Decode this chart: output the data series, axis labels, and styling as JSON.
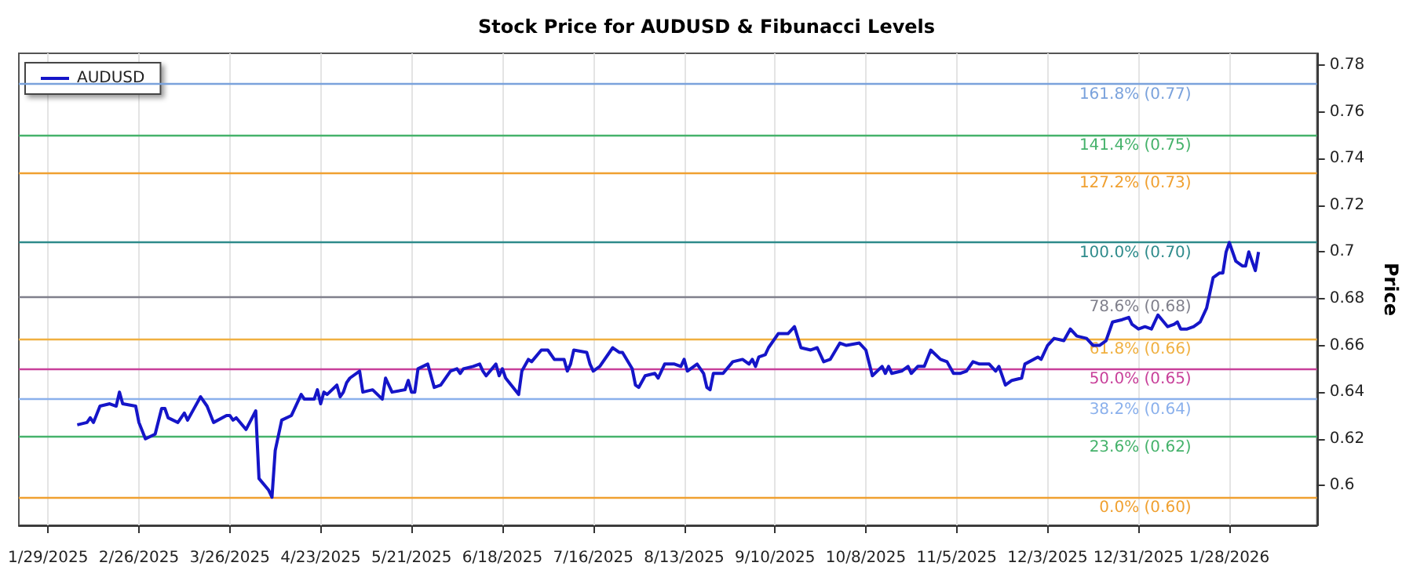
{
  "chart_data": {
    "type": "line",
    "title": "Stock Price for AUDUSD & Fibunacci Levels",
    "ylabel": "Price",
    "x": [
      "2025-02-07",
      "2025-02-10",
      "2025-02-11",
      "2025-02-12",
      "2025-02-14",
      "2025-02-17",
      "2025-02-19",
      "2025-02-20",
      "2025-02-21",
      "2025-02-25",
      "2025-02-26",
      "2025-02-28",
      "2025-03-03",
      "2025-03-05",
      "2025-03-06",
      "2025-03-07",
      "2025-03-10",
      "2025-03-12",
      "2025-03-13",
      "2025-03-17",
      "2025-03-19",
      "2025-03-21",
      "2025-03-25",
      "2025-03-26",
      "2025-03-27",
      "2025-03-28",
      "2025-03-31",
      "2025-04-03",
      "2025-04-04",
      "2025-04-07",
      "2025-04-08",
      "2025-04-09",
      "2025-04-11",
      "2025-04-14",
      "2025-04-17",
      "2025-04-18",
      "2025-04-21",
      "2025-04-22",
      "2025-04-23",
      "2025-04-24",
      "2025-04-25",
      "2025-04-28",
      "2025-04-29",
      "2025-04-30",
      "2025-05-01",
      "2025-05-02",
      "2025-05-05",
      "2025-05-06",
      "2025-05-09",
      "2025-05-12",
      "2025-05-13",
      "2025-05-15",
      "2025-05-19",
      "2025-05-20",
      "2025-05-21",
      "2025-05-22",
      "2025-05-23",
      "2025-05-26",
      "2025-05-28",
      "2025-05-30",
      "2025-06-02",
      "2025-06-04",
      "2025-06-05",
      "2025-06-06",
      "2025-06-09",
      "2025-06-11",
      "2025-06-12",
      "2025-06-13",
      "2025-06-16",
      "2025-06-17",
      "2025-06-18",
      "2025-06-19",
      "2025-06-23",
      "2025-06-24",
      "2025-06-26",
      "2025-06-27",
      "2025-06-30",
      "2025-07-02",
      "2025-07-04",
      "2025-07-07",
      "2025-07-08",
      "2025-07-09",
      "2025-07-10",
      "2025-07-14",
      "2025-07-15",
      "2025-07-16",
      "2025-07-18",
      "2025-07-22",
      "2025-07-24",
      "2025-07-25",
      "2025-07-28",
      "2025-07-29",
      "2025-07-30",
      "2025-08-01",
      "2025-08-04",
      "2025-08-05",
      "2025-08-07",
      "2025-08-10",
      "2025-08-12",
      "2025-08-13",
      "2025-08-14",
      "2025-08-17",
      "2025-08-19",
      "2025-08-20",
      "2025-08-21",
      "2025-08-22",
      "2025-08-25",
      "2025-08-28",
      "2025-08-31",
      "2025-09-02",
      "2025-09-03",
      "2025-09-04",
      "2025-09-05",
      "2025-09-07",
      "2025-09-08",
      "2025-09-11",
      "2025-09-13",
      "2025-09-14",
      "2025-09-16",
      "2025-09-18",
      "2025-09-21",
      "2025-09-23",
      "2025-09-25",
      "2025-09-27",
      "2025-09-30",
      "2025-10-02",
      "2025-10-06",
      "2025-10-08",
      "2025-10-10",
      "2025-10-13",
      "2025-10-14",
      "2025-10-15",
      "2025-10-16",
      "2025-10-19",
      "2025-10-21",
      "2025-10-22",
      "2025-10-24",
      "2025-10-26",
      "2025-10-28",
      "2025-10-31",
      "2025-11-02",
      "2025-11-04",
      "2025-11-06",
      "2025-11-08",
      "2025-11-10",
      "2025-11-12",
      "2025-11-15",
      "2025-11-17",
      "2025-11-18",
      "2025-11-20",
      "2025-11-22",
      "2025-11-25",
      "2025-11-26",
      "2025-11-30",
      "2025-12-01",
      "2025-12-03",
      "2025-12-05",
      "2025-12-08",
      "2025-12-10",
      "2025-12-12",
      "2025-12-15",
      "2025-12-17",
      "2025-12-19",
      "2025-12-21",
      "2025-12-23",
      "2025-12-26",
      "2025-12-28",
      "2025-12-29",
      "2025-12-31",
      "2026-01-02",
      "2026-01-04",
      "2026-01-06",
      "2026-01-09",
      "2026-01-11",
      "2026-01-12",
      "2026-01-13",
      "2026-01-15",
      "2026-01-17",
      "2026-01-19",
      "2026-01-21",
      "2026-01-23",
      "2026-01-25",
      "2026-01-26",
      "2026-01-27",
      "2026-01-28",
      "2026-01-30",
      "2026-02-01",
      "2026-02-02",
      "2026-02-03",
      "2026-02-05",
      "2026-02-06"
    ],
    "series": [
      {
        "name": "AUDUSD",
        "color": "#1515c8",
        "values": [
          0.626,
          0.627,
          0.629,
          0.627,
          0.634,
          0.635,
          0.634,
          0.64,
          0.635,
          0.634,
          0.627,
          0.62,
          0.622,
          0.633,
          0.633,
          0.629,
          0.627,
          0.631,
          0.628,
          0.638,
          0.634,
          0.627,
          0.63,
          0.63,
          0.628,
          0.629,
          0.624,
          0.632,
          0.603,
          0.598,
          0.595,
          0.615,
          0.628,
          0.63,
          0.639,
          0.637,
          0.637,
          0.641,
          0.635,
          0.64,
          0.639,
          0.643,
          0.638,
          0.64,
          0.644,
          0.646,
          0.649,
          0.64,
          0.641,
          0.637,
          0.646,
          0.64,
          0.641,
          0.645,
          0.64,
          0.64,
          0.65,
          0.652,
          0.642,
          0.643,
          0.649,
          0.65,
          0.648,
          0.65,
          0.651,
          0.652,
          0.649,
          0.647,
          0.652,
          0.647,
          0.65,
          0.646,
          0.639,
          0.649,
          0.654,
          0.653,
          0.658,
          0.658,
          0.654,
          0.654,
          0.649,
          0.652,
          0.658,
          0.657,
          0.652,
          0.649,
          0.651,
          0.659,
          0.657,
          0.657,
          0.65,
          0.643,
          0.642,
          0.647,
          0.648,
          0.646,
          0.652,
          0.652,
          0.651,
          0.654,
          0.649,
          0.652,
          0.648,
          0.642,
          0.641,
          0.648,
          0.648,
          0.653,
          0.654,
          0.652,
          0.654,
          0.651,
          0.655,
          0.656,
          0.659,
          0.665,
          0.665,
          0.665,
          0.668,
          0.659,
          0.658,
          0.659,
          0.653,
          0.654,
          0.661,
          0.66,
          0.661,
          0.658,
          0.647,
          0.651,
          0.648,
          0.651,
          0.648,
          0.649,
          0.651,
          0.648,
          0.651,
          0.651,
          0.658,
          0.654,
          0.653,
          0.648,
          0.648,
          0.649,
          0.653,
          0.652,
          0.652,
          0.649,
          0.651,
          0.643,
          0.645,
          0.646,
          0.652,
          0.655,
          0.654,
          0.66,
          0.663,
          0.662,
          0.667,
          0.664,
          0.663,
          0.66,
          0.66,
          0.662,
          0.67,
          0.671,
          0.672,
          0.669,
          0.667,
          0.668,
          0.667,
          0.673,
          0.668,
          0.669,
          0.67,
          0.667,
          0.667,
          0.668,
          0.67,
          0.676,
          0.689,
          0.691,
          0.691,
          0.7,
          0.704,
          0.696,
          0.694,
          0.694,
          0.7,
          0.692,
          0.7
        ]
      }
    ],
    "xlim": [
      "2025-01-20",
      "2026-02-24"
    ],
    "xticks": [
      {
        "value": "2025-01-29",
        "label": "1/29/2025"
      },
      {
        "value": "2025-02-26",
        "label": "2/26/2025"
      },
      {
        "value": "2025-03-26",
        "label": "3/26/2025"
      },
      {
        "value": "2025-04-23",
        "label": "4/23/2025"
      },
      {
        "value": "2025-05-21",
        "label": "5/21/2025"
      },
      {
        "value": "2025-06-18",
        "label": "6/18/2025"
      },
      {
        "value": "2025-07-16",
        "label": "7/16/2025"
      },
      {
        "value": "2025-08-13",
        "label": "8/13/2025"
      },
      {
        "value": "2025-09-10",
        "label": "9/10/2025"
      },
      {
        "value": "2025-10-08",
        "label": "10/8/2025"
      },
      {
        "value": "2025-11-05",
        "label": "11/5/2025"
      },
      {
        "value": "2025-12-03",
        "label": "12/3/2025"
      },
      {
        "value": "2025-12-31",
        "label": "12/31/2025"
      },
      {
        "value": "2026-01-28",
        "label": "1/28/2026"
      }
    ],
    "ylim": [
      0.583,
      0.785
    ],
    "yticks": [
      0.6,
      0.62,
      0.64,
      0.66,
      0.68,
      0.7,
      0.72,
      0.74,
      0.76,
      0.78
    ],
    "ref_lines": [
      {
        "axis": "y",
        "value": 0.772,
        "label": "161.8% (0.77)",
        "color": "#7aa2dc"
      },
      {
        "axis": "y",
        "value": 0.75,
        "label": "141.4% (0.75)",
        "color": "#45b26b"
      },
      {
        "axis": "y",
        "value": 0.734,
        "label": "127.2% (0.73)",
        "color": "#f0a030"
      },
      {
        "axis": "y",
        "value": 0.704,
        "label": "100.0% (0.70)",
        "color": "#2e8b8b"
      },
      {
        "axis": "y",
        "value": 0.681,
        "label": "78.6% (0.68)",
        "color": "#80808c"
      },
      {
        "axis": "y",
        "value": 0.663,
        "label": "61.8% (0.66)",
        "color": "#f0b040"
      },
      {
        "axis": "y",
        "value": 0.65,
        "label": "50.0% (0.65)",
        "color": "#c8409a"
      },
      {
        "axis": "y",
        "value": 0.637,
        "label": "38.2% (0.64)",
        "color": "#8ab0ec"
      },
      {
        "axis": "y",
        "value": 0.621,
        "label": "23.6% (0.62)",
        "color": "#45b26b"
      },
      {
        "axis": "y",
        "value": 0.595,
        "label": "0.0% (0.60)",
        "color": "#f0a030"
      }
    ],
    "grid": "x",
    "legend": "top left",
    "marker": "none",
    "line_style": "solid"
  }
}
